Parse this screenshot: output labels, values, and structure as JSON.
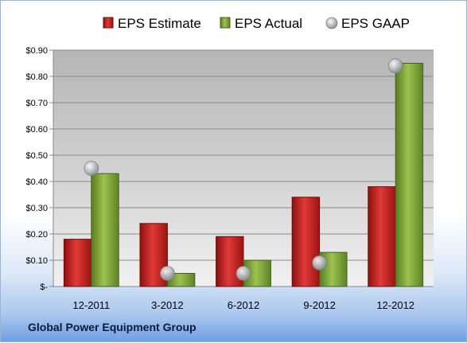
{
  "footer": {
    "company": "Global Power Equipment Group"
  },
  "chart_data": {
    "type": "bar",
    "title": "",
    "xlabel": "",
    "ylabel": "",
    "categories": [
      "12-2011",
      "3-2012",
      "6-2012",
      "9-2012",
      "12-2012"
    ],
    "series": [
      {
        "name": "EPS Estimate",
        "kind": "bar",
        "color": "#c0201e",
        "values": [
          0.18,
          0.24,
          0.19,
          0.34,
          0.38
        ]
      },
      {
        "name": "EPS Actual",
        "kind": "bar",
        "color": "#7fa13a",
        "values": [
          0.43,
          0.05,
          0.1,
          0.13,
          0.85
        ]
      },
      {
        "name": "EPS GAAP",
        "kind": "marker",
        "color": "#b8bcc2",
        "values": [
          0.45,
          0.05,
          0.05,
          0.09,
          0.84
        ]
      }
    ],
    "ylim": [
      0,
      0.9
    ],
    "yticks": [
      0,
      0.1,
      0.2,
      0.3,
      0.4,
      0.5,
      0.6,
      0.7,
      0.8,
      0.9
    ],
    "ytick_labels": [
      "$-",
      "$0.10",
      "$0.20",
      "$0.30",
      "$0.40",
      "$0.50",
      "$0.60",
      "$0.70",
      "$0.80",
      "$0.90"
    ],
    "legend_position": "top",
    "grid": true
  }
}
